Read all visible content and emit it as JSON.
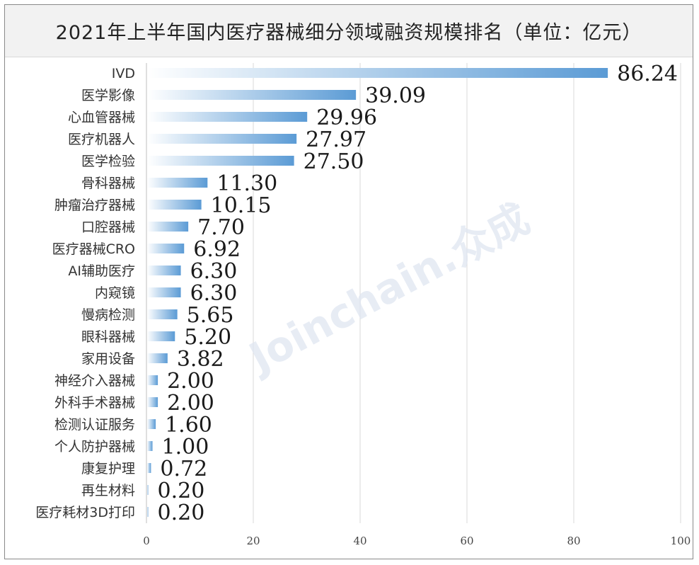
{
  "chart_data": {
    "type": "bar",
    "orientation": "horizontal",
    "title": "2021年上半年国内医疗器械细分领域融资规模排名（单位：亿元）",
    "categories": [
      "IVD",
      "医学影像",
      "心血管器械",
      "医疗机器人",
      "医学检验",
      "骨科器械",
      "肿瘤治疗器械",
      "口腔器械",
      "医疗器械CRO",
      "AI辅助医疗",
      "内窥镜",
      "慢病检测",
      "眼科器械",
      "家用设备",
      "神经介入器械",
      "外科手术器械",
      "检测认证服务",
      "个人防护器械",
      "康复护理",
      "再生材料",
      "医疗耗材3D打印"
    ],
    "values": [
      86.24,
      39.09,
      29.96,
      27.97,
      27.5,
      11.3,
      10.15,
      7.7,
      6.92,
      6.3,
      6.3,
      5.65,
      5.2,
      3.82,
      2.0,
      2.0,
      1.6,
      1.0,
      0.72,
      0.2,
      0.2
    ],
    "value_labels": [
      "86.24",
      "39.09",
      "29.96",
      "27.97",
      "27.50",
      "11.30",
      "10.15",
      "7.70",
      "6.92",
      "6.30",
      "6.30",
      "5.65",
      "5.20",
      "3.82",
      "2.00",
      "2.00",
      "1.60",
      "1.00",
      "0.72",
      "0.20",
      "0.20"
    ],
    "xlim": [
      0,
      100
    ],
    "xticks": [
      0,
      20,
      40,
      60,
      80,
      100
    ],
    "xtick_labels": [
      "0",
      "20",
      "40",
      "60",
      "80",
      "100"
    ],
    "grid": "vertical",
    "bar_color": "#5b9bd5"
  },
  "watermark": "Joinchain.众成"
}
